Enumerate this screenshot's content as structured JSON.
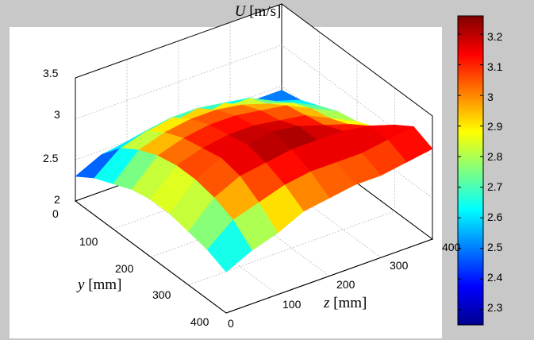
{
  "chart_data": {
    "type": "surface",
    "title_var": "U",
    "title_unit": "[m/s]",
    "x_axis": {
      "var": "z",
      "unit": "[mm]",
      "ticks": [
        "0",
        "100",
        "200",
        "300",
        "400"
      ],
      "range": [
        0,
        400
      ]
    },
    "y_axis": {
      "var": "y",
      "unit": "[mm]",
      "ticks": [
        "0",
        "100",
        "200",
        "300",
        "400"
      ],
      "range": [
        0,
        400
      ]
    },
    "z_axis": {
      "ticks": [
        "2",
        "2.5",
        "3",
        "3.5"
      ],
      "range": [
        2,
        3.5
      ]
    },
    "colorbar": {
      "ticks": [
        "2.3",
        "2.4",
        "2.5",
        "2.6",
        "2.7",
        "2.8",
        "2.9",
        "3",
        "3.1",
        "3.2"
      ],
      "range": [
        2.25,
        3.26
      ],
      "colormap": "jet"
    },
    "surface": {
      "grid_x": [
        0,
        50,
        100,
        150,
        200,
        250,
        300,
        350,
        400
      ],
      "grid_y": [
        0,
        50,
        100,
        150,
        200,
        250,
        300,
        350,
        400
      ],
      "values": [
        [
          2.5,
          2.65,
          2.75,
          2.9,
          2.95,
          3.0,
          3.0,
          3.05,
          3.1
        ],
        [
          2.6,
          2.85,
          2.95,
          3.05,
          3.1,
          3.1,
          3.1,
          3.15,
          3.2
        ],
        [
          2.65,
          2.95,
          3.1,
          3.15,
          3.2,
          3.2,
          3.2,
          3.15,
          3.05
        ],
        [
          2.7,
          3.0,
          3.15,
          3.2,
          3.25,
          3.2,
          3.1,
          3.0,
          2.85
        ],
        [
          2.7,
          3.0,
          3.1,
          3.15,
          3.15,
          3.1,
          3.05,
          2.9,
          2.75
        ],
        [
          2.65,
          2.95,
          3.05,
          3.1,
          3.1,
          3.05,
          3.0,
          2.85,
          2.7
        ],
        [
          2.55,
          2.85,
          2.95,
          3.0,
          3.0,
          2.95,
          2.85,
          2.75,
          2.6
        ],
        [
          2.45,
          2.7,
          2.8,
          2.85,
          2.85,
          2.8,
          2.75,
          2.6,
          2.5
        ],
        [
          2.3,
          2.45,
          2.5,
          2.55,
          2.55,
          2.5,
          2.5,
          2.45,
          2.45
        ]
      ]
    }
  }
}
